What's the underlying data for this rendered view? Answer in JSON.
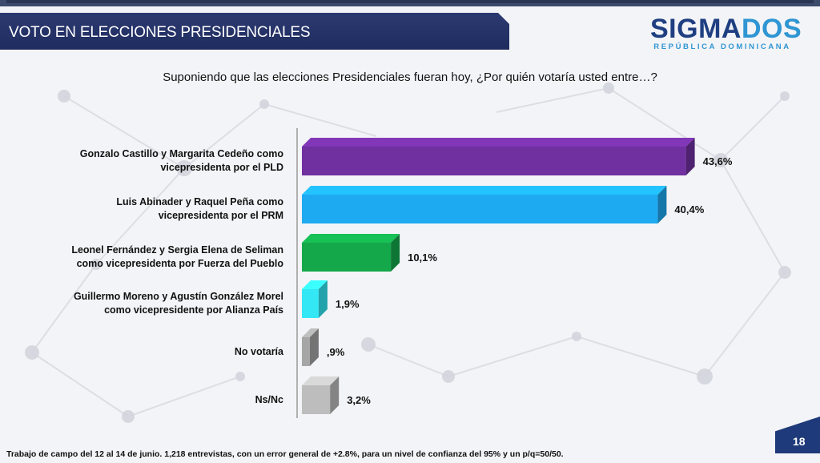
{
  "header": {
    "title": "VOTO EN ELECCIONES PRESIDENCIALES",
    "logo_part1": "SIGMA",
    "logo_part2": "DOS",
    "logo_sub": "REPÚBLICA DOMINICANA"
  },
  "question": "Suponiendo que las elecciones Presidenciales fueran hoy, ¿Por quién votaría usted entre…?",
  "chart_data": {
    "type": "bar",
    "orientation": "horizontal",
    "categories": [
      [
        "Gonzalo Castillo y Margarita Cedeño como",
        "vicepresidenta por el PLD"
      ],
      [
        "Luis Abinader y Raquel Peña como",
        "vicepresidenta por el PRM"
      ],
      [
        "Leonel Fernández y Sergia Elena de Seliman",
        "como vicepresidenta por Fuerza del Pueblo"
      ],
      [
        "Guillermo Moreno y Agustín González Morel",
        "como vicepresidente por Alianza País"
      ],
      [
        "No votaría"
      ],
      [
        "Ns/Nc"
      ]
    ],
    "values": [
      43.6,
      40.4,
      10.1,
      1.9,
      0.9,
      3.2
    ],
    "value_labels": [
      "43,6%",
      "40,4%",
      "10,1%",
      "1,9%",
      ",9%",
      "3,2%"
    ],
    "colors": [
      "#7030a0",
      "#1eaaf1",
      "#14a84a",
      "#33e8f4",
      "#a6a6a6",
      "#bdbdbd"
    ],
    "unit": "%",
    "grid": false,
    "legend": "none"
  },
  "footnote": "Trabajo de campo del 12 al 14 de junio. 1,218 entrevistas, con un error general de +2.8%, para un nivel de confianza del 95% y un p/q=50/50.",
  "page_number": "18"
}
